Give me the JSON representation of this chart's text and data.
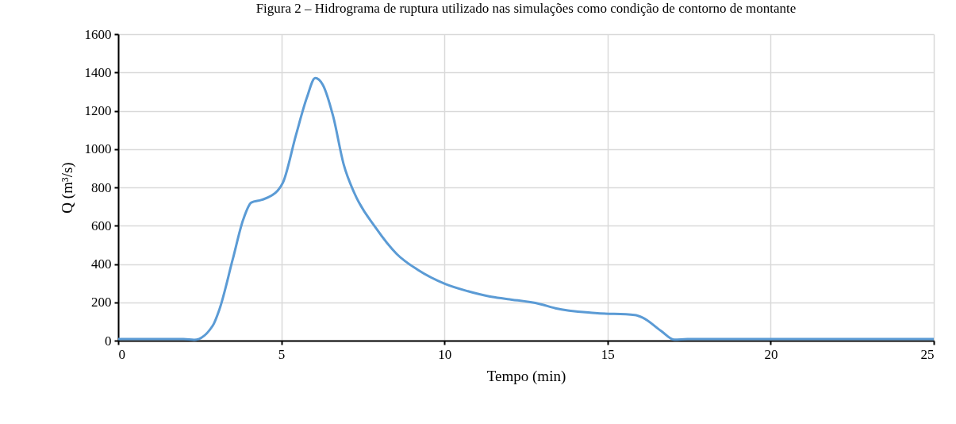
{
  "chart_data": {
    "type": "line",
    "title": "Figura 2 – Hidrograma de ruptura utilizado nas simulações como condição de contorno de montante",
    "xlabel": "Tempo (min)",
    "ylabel": "Q (m³/s)",
    "x": [
      0,
      1,
      2,
      2.33,
      2.9,
      3.1,
      3.51,
      3.83,
      4.08,
      4.4,
      4.89,
      5.05,
      5.45,
      5.78,
      6.04,
      6.27,
      6.59,
      6.91,
      7.24,
      7.89,
      8.54,
      9.19,
      10.01,
      10.72,
      11.37,
      11.94,
      12.91,
      13.4,
      14.62,
      15.83,
      16.08,
      16.64,
      17.05,
      17.45,
      20,
      25
    ],
    "series": [
      {
        "color": "#5b9bd5",
        "values": [
          8,
          8,
          8,
          4,
          79,
          162,
          424,
          631,
          721,
          735,
          783,
          825,
          1074,
          1267,
          1371,
          1336,
          1170,
          921,
          770,
          590,
          452,
          369,
          297,
          258,
          231,
          217,
          192,
          169,
          144,
          134,
          120,
          51,
          5,
          8,
          8,
          8
        ]
      }
    ],
    "xlim": [
      0,
      25
    ],
    "xticks": [
      0,
      5,
      10,
      15,
      20,
      25
    ],
    "ylim": [
      0,
      1600
    ],
    "yticks": [
      0,
      200,
      400,
      600,
      800,
      1000,
      1200,
      1400,
      1600
    ],
    "grid": true,
    "marker": "none",
    "line_style": "solid"
  }
}
